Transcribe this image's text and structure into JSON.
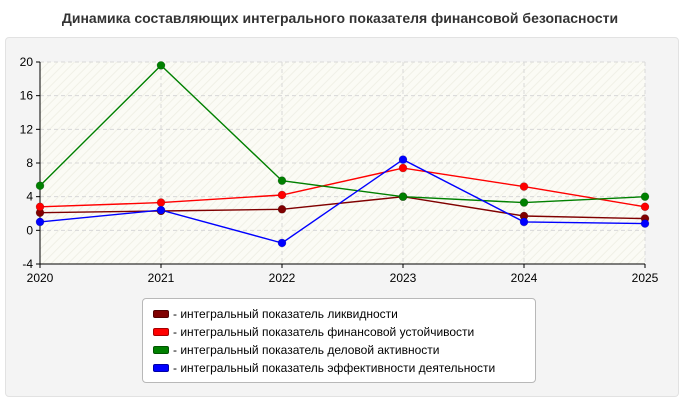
{
  "chart_data": {
    "type": "line",
    "title": "Динамика составляющих интегрального показателя финансовой безопасности",
    "x": [
      "2020",
      "2021",
      "2022",
      "2023",
      "2024",
      "2025"
    ],
    "ylim": [
      -4,
      20
    ],
    "yticks": [
      -4,
      0,
      4,
      8,
      12,
      16,
      20
    ],
    "grid": true,
    "legend_position": "bottom",
    "series": [
      {
        "name": "- интегральный показатель ликвидности",
        "color": "#800000",
        "values": [
          2.1,
          2.3,
          2.5,
          4.0,
          1.7,
          1.4
        ]
      },
      {
        "name": "- интегральный показатель финансовой устойчивости",
        "color": "#ff0000",
        "values": [
          2.8,
          3.3,
          4.2,
          7.4,
          5.2,
          2.8
        ]
      },
      {
        "name": "- интегральный показатель деловой активности",
        "color": "#008000",
        "values": [
          5.3,
          19.6,
          5.9,
          4.0,
          3.3,
          4.0
        ]
      },
      {
        "name": "- интегральный показатель эффективности деятельности",
        "color": "#0000ff",
        "values": [
          1.0,
          2.4,
          -1.5,
          8.4,
          1.0,
          0.8
        ]
      }
    ]
  }
}
